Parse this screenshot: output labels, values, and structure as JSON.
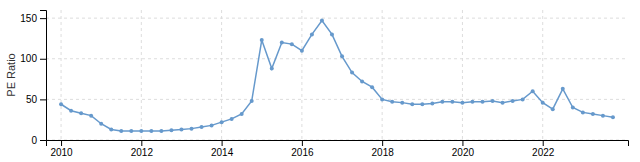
{
  "chart_data": {
    "type": "line",
    "ylabel": "PE Ratio",
    "categories": [
      "2010",
      null,
      null,
      null,
      null,
      null,
      null,
      null,
      "2012",
      null,
      null,
      null,
      null,
      null,
      null,
      null,
      "2014",
      null,
      null,
      null,
      null,
      null,
      null,
      null,
      "2016",
      null,
      null,
      null,
      null,
      null,
      null,
      null,
      "2018",
      null,
      null,
      null,
      null,
      null,
      null,
      null,
      "2020",
      null,
      null,
      null,
      null,
      null,
      null,
      null,
      "2022",
      null,
      null,
      null,
      null,
      null,
      null,
      null
    ],
    "values": [
      44,
      36,
      33,
      30,
      20,
      13,
      11,
      11,
      11,
      11,
      11,
      12,
      13,
      14,
      16,
      18,
      22,
      26,
      32,
      48,
      123,
      88,
      120,
      118,
      110,
      130,
      147,
      130,
      103,
      83,
      72,
      65,
      50,
      47,
      46,
      44,
      44,
      45,
      47,
      47,
      46,
      47,
      47,
      48,
      46,
      48,
      50,
      60,
      46,
      38,
      63,
      40,
      34,
      32,
      30,
      28
    ],
    "ylim": [
      0,
      160
    ],
    "yticks": [
      0,
      50,
      100,
      150
    ],
    "grid": true,
    "color": "#6699cc",
    "marker": "circle"
  }
}
